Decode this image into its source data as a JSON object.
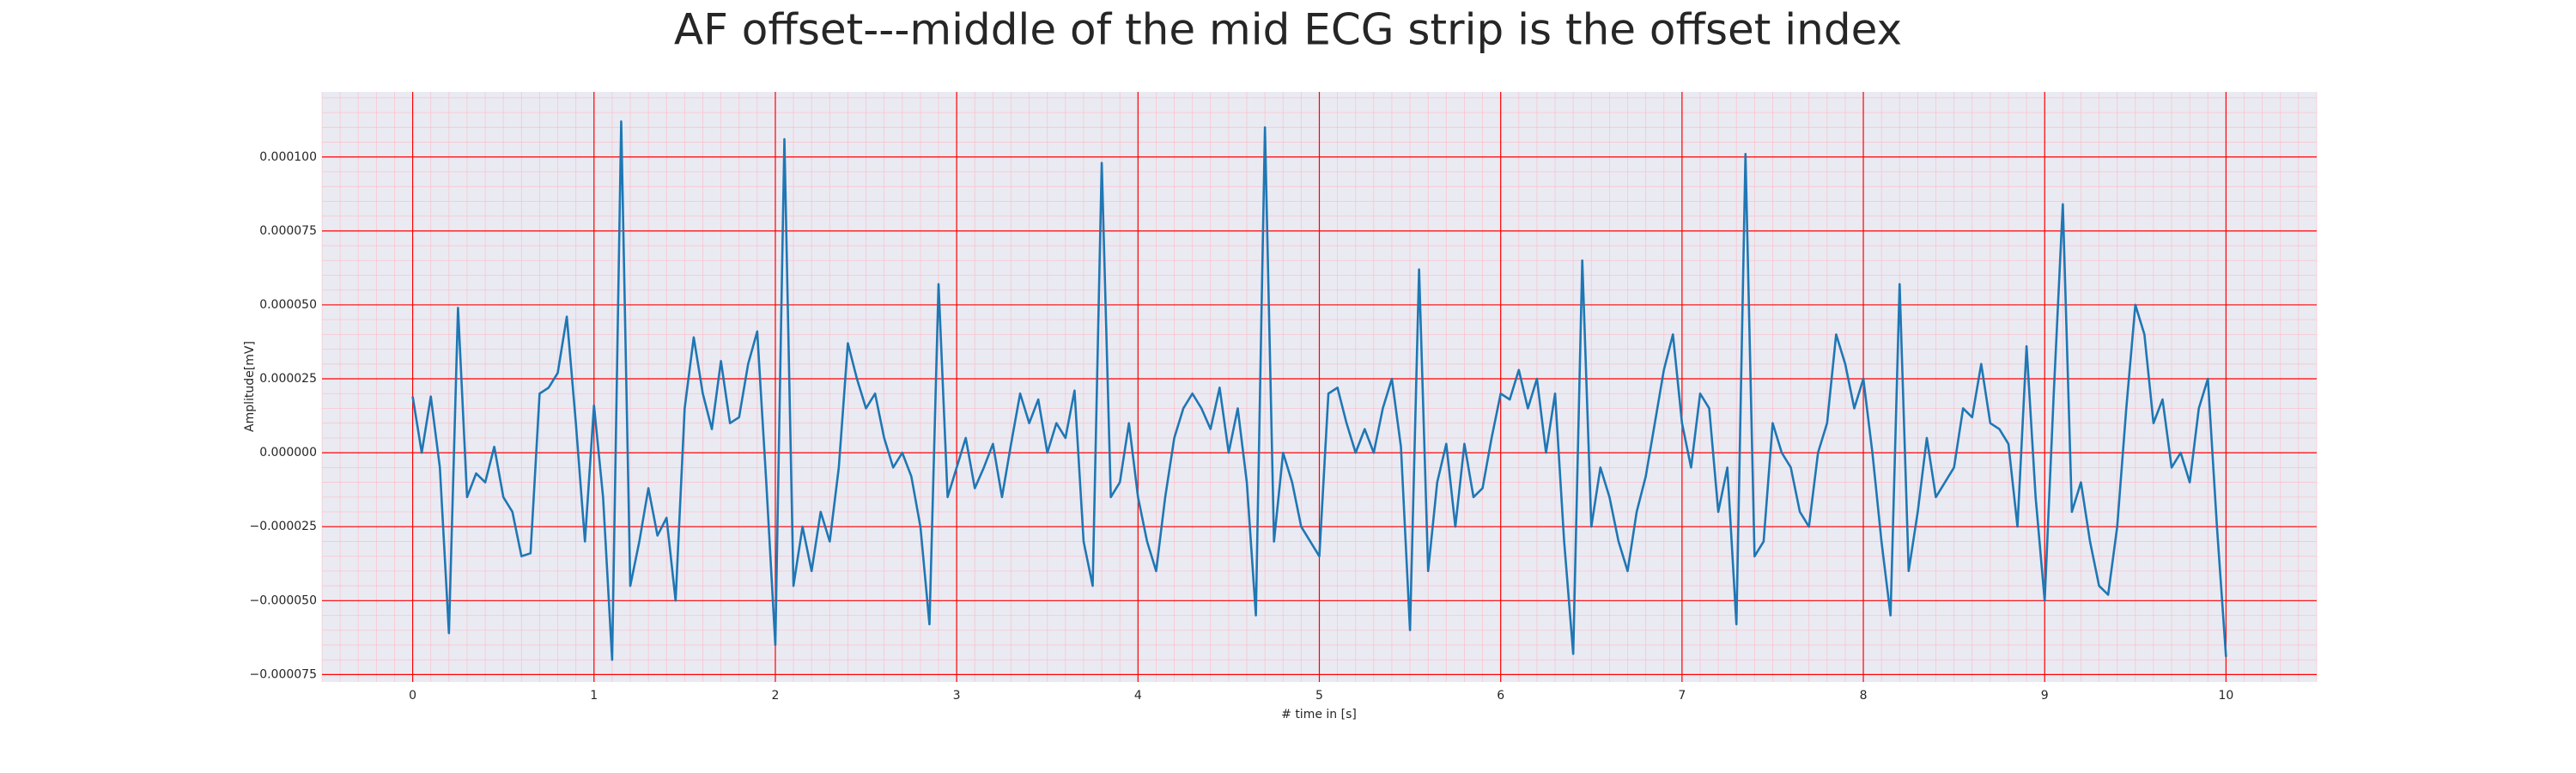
{
  "chart_data": {
    "type": "line",
    "title": "AF offset---middle of the mid ECG strip is the offset index",
    "x_label": "# time in [s]",
    "y_label": "Amplitude[mV]",
    "xlim": [
      -0.5,
      10.5
    ],
    "ylim": [
      -7.75e-05,
      0.000122
    ],
    "xticks": [
      0,
      1,
      2,
      3,
      4,
      5,
      6,
      7,
      8,
      9,
      10
    ],
    "yticks": [
      {
        "value": -7.5e-05,
        "label": "−0.000075"
      },
      {
        "value": -5e-05,
        "label": "−0.000050"
      },
      {
        "value": -2.5e-05,
        "label": "−0.000025"
      },
      {
        "value": 0,
        "label": "0.000000"
      },
      {
        "value": 2.5e-05,
        "label": "0.000025"
      },
      {
        "value": 5e-05,
        "label": "0.000050"
      },
      {
        "value": 7.5e-05,
        "label": "0.000075"
      },
      {
        "value": 0.0001,
        "label": "0.000100"
      }
    ],
    "grid": true,
    "grid_color": "#ff0000",
    "minor_grid": {
      "x_step": 0.1,
      "y_step": 5e-06,
      "color": "#ffb6c1"
    },
    "background": "#eaeaf2",
    "x": [
      0,
      0.05,
      0.1,
      0.15,
      0.2,
      0.25,
      0.3,
      0.35,
      0.4,
      0.45,
      0.5,
      0.55,
      0.6,
      0.65,
      0.7,
      0.75,
      0.8,
      0.85,
      0.9,
      0.95,
      1,
      1.05,
      1.1,
      1.15,
      1.2,
      1.25,
      1.3,
      1.35,
      1.4,
      1.45,
      1.5,
      1.55,
      1.6,
      1.65,
      1.7,
      1.75,
      1.8,
      1.85,
      1.9,
      1.95,
      2,
      2.05,
      2.1,
      2.15,
      2.2,
      2.25,
      2.3,
      2.35,
      2.4,
      2.45,
      2.5,
      2.55,
      2.6,
      2.65,
      2.7,
      2.75,
      2.8,
      2.85,
      2.9,
      2.95,
      3,
      3.05,
      3.1,
      3.15,
      3.2,
      3.25,
      3.3,
      3.35,
      3.4,
      3.45,
      3.5,
      3.55,
      3.6,
      3.65,
      3.7,
      3.75,
      3.8,
      3.85,
      3.9,
      3.95,
      4,
      4.05,
      4.1,
      4.15,
      4.2,
      4.25,
      4.3,
      4.35,
      4.4,
      4.45,
      4.5,
      4.55,
      4.6,
      4.65,
      4.7,
      4.75,
      4.8,
      4.85,
      4.9,
      4.95,
      5,
      5.05,
      5.1,
      5.15,
      5.2,
      5.25,
      5.3,
      5.35,
      5.4,
      5.45,
      5.5,
      5.55,
      5.6,
      5.65,
      5.7,
      5.75,
      5.8,
      5.85,
      5.9,
      5.95,
      6,
      6.05,
      6.1,
      6.15,
      6.2,
      6.25,
      6.3,
      6.35,
      6.4,
      6.45,
      6.5,
      6.55,
      6.6,
      6.65,
      6.7,
      6.75,
      6.8,
      6.85,
      6.9,
      6.95,
      7,
      7.05,
      7.1,
      7.15,
      7.2,
      7.25,
      7.3,
      7.35,
      7.4,
      7.45,
      7.5,
      7.55,
      7.6,
      7.65,
      7.7,
      7.75,
      7.8,
      7.85,
      7.9,
      7.95,
      8,
      8.05,
      8.1,
      8.15,
      8.2,
      8.25,
      8.3,
      8.35,
      8.4,
      8.45,
      8.5,
      8.55,
      8.6,
      8.65,
      8.7,
      8.75,
      8.8,
      8.85,
      8.9,
      8.95,
      9,
      9.05,
      9.1,
      9.15,
      9.2,
      9.25,
      9.3,
      9.35,
      9.4,
      9.45,
      9.5,
      9.55,
      9.6,
      9.65,
      9.7,
      9.75,
      9.8,
      9.85,
      9.9,
      9.95,
      10
    ],
    "series": [
      {
        "color": "#1f77b4",
        "values": [
          1.9e-05,
          0,
          1.9e-05,
          -5e-06,
          -6.1e-05,
          4.9e-05,
          -1.5e-05,
          -7e-06,
          -1e-05,
          2e-06,
          -1.5e-05,
          -2e-05,
          -3.5e-05,
          -3.4e-05,
          2e-05,
          2.2e-05,
          2.7e-05,
          4.6e-05,
          1e-05,
          -3e-05,
          1.6e-05,
          -1.5e-05,
          -7e-05,
          0.000112,
          -4.5e-05,
          -3e-05,
          -1.2e-05,
          -2.8e-05,
          -2.2e-05,
          -5e-05,
          1.5e-05,
          3.9e-05,
          2e-05,
          8e-06,
          3.1e-05,
          1e-05,
          1.2e-05,
          3e-05,
          4.1e-05,
          -1e-05,
          -6.5e-05,
          0.000106,
          -4.5e-05,
          -2.5e-05,
          -4e-05,
          -2e-05,
          -3e-05,
          -5e-06,
          3.7e-05,
          2.5e-05,
          1.5e-05,
          2e-05,
          5e-06,
          -5e-06,
          0,
          -8e-06,
          -2.5e-05,
          -5.8e-05,
          5.7e-05,
          -1.5e-05,
          -5e-06,
          5e-06,
          -1.2e-05,
          -5e-06,
          3e-06,
          -1.5e-05,
          3e-06,
          2e-05,
          1e-05,
          1.8e-05,
          0,
          1e-05,
          5e-06,
          2.1e-05,
          -3e-05,
          -4.5e-05,
          9.8e-05,
          -1.5e-05,
          -1e-05,
          1e-05,
          -1.5e-05,
          -3e-05,
          -4e-05,
          -1.5e-05,
          5e-06,
          1.5e-05,
          2e-05,
          1.5e-05,
          8e-06,
          2.2e-05,
          0,
          1.5e-05,
          -1e-05,
          -5.5e-05,
          0.00011,
          -3e-05,
          0,
          -1e-05,
          -2.5e-05,
          -3e-05,
          -3.5e-05,
          2e-05,
          2.2e-05,
          1e-05,
          0,
          8e-06,
          0,
          1.5e-05,
          2.5e-05,
          2e-06,
          -6e-05,
          6.2e-05,
          -4e-05,
          -1e-05,
          3e-06,
          -2.5e-05,
          3e-06,
          -1.5e-05,
          -1.2e-05,
          5e-06,
          2e-05,
          1.8e-05,
          2.8e-05,
          1.5e-05,
          2.5e-05,
          0,
          2e-05,
          -3e-05,
          -6.8e-05,
          6.5e-05,
          -2.5e-05,
          -5e-06,
          -1.5e-05,
          -3e-05,
          -4e-05,
          -2e-05,
          -8e-06,
          1e-05,
          2.8e-05,
          4e-05,
          1e-05,
          -5e-06,
          2e-05,
          1.5e-05,
          -2e-05,
          -5e-06,
          -5.8e-05,
          0.000101,
          -3.5e-05,
          -3e-05,
          1e-05,
          0,
          -5e-06,
          -2e-05,
          -2.5e-05,
          0,
          1e-05,
          4e-05,
          3e-05,
          1.5e-05,
          2.5e-05,
          0,
          -3e-05,
          -5.5e-05,
          5.7e-05,
          -4e-05,
          -2e-05,
          5e-06,
          -1.5e-05,
          -1e-05,
          -5e-06,
          1.5e-05,
          1.2e-05,
          3e-05,
          1e-05,
          8e-06,
          3e-06,
          -2.5e-05,
          3.6e-05,
          -1.5e-05,
          -5e-05,
          2e-05,
          8.4e-05,
          -2e-05,
          -1e-05,
          -3e-05,
          -4.5e-05,
          -4.8e-05,
          -2.5e-05,
          1.5e-05,
          5e-05,
          4e-05,
          1e-05,
          1.8e-05,
          -5e-06,
          0,
          -1e-05,
          1.5e-05,
          2.5e-05,
          -2.5e-05,
          -6.9e-05
        ]
      }
    ]
  }
}
